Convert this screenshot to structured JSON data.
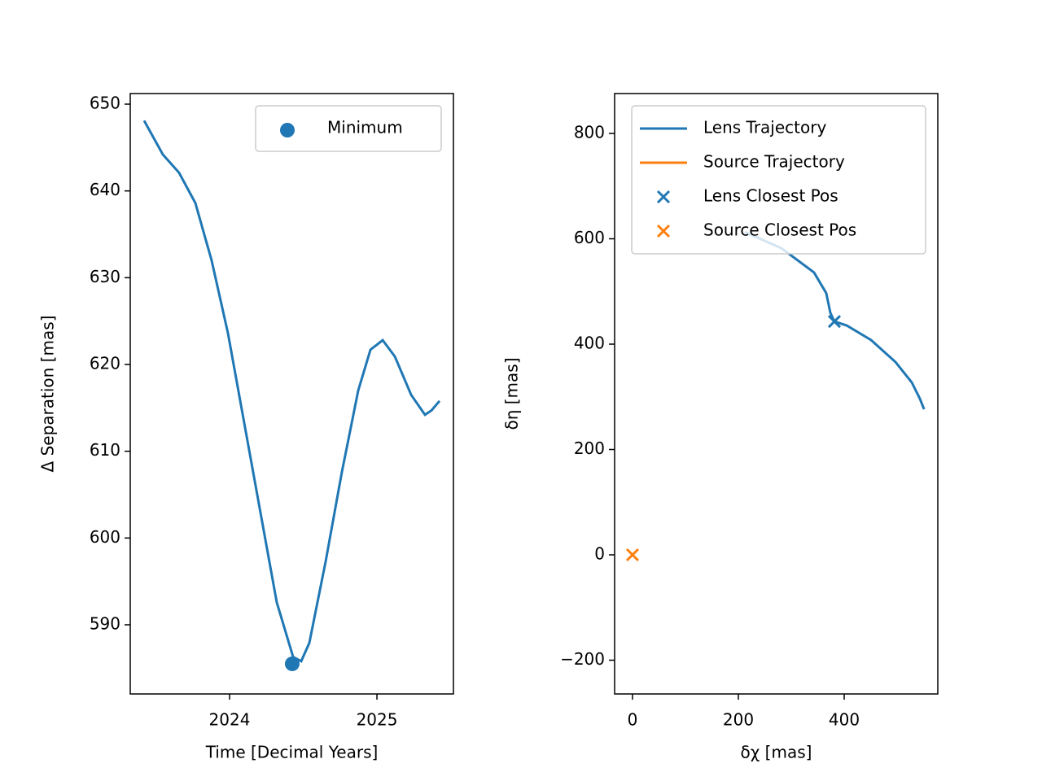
{
  "chart_data": [
    {
      "type": "line",
      "xlabel": "Time [Decimal Years]",
      "ylabel": "Δ Separation [mas]",
      "xlim": [
        2023.326,
        2025.519
      ],
      "ylim": [
        582.03,
        651.22
      ],
      "xticks": [
        2024,
        2025
      ],
      "yticks": [
        590,
        600,
        610,
        620,
        630,
        640,
        650
      ],
      "legend": "upper right",
      "series": [
        {
          "color": "#1f77b4",
          "kind": "line",
          "x": [
            2023.42,
            2023.547,
            2023.657,
            2023.768,
            2023.878,
            2023.989,
            2024.099,
            2024.21,
            2024.32,
            2024.431,
            2024.486,
            2024.541,
            2024.652,
            2024.762,
            2024.873,
            2024.956,
            2025.039,
            2025.122,
            2025.232,
            2025.326,
            2025.37,
            2025.425
          ],
          "values": [
            648.1,
            644.2,
            642.1,
            638.6,
            632.0,
            623.6,
            613.3,
            602.9,
            592.6,
            586.3,
            585.8,
            587.9,
            597.3,
            607.6,
            617.0,
            621.7,
            622.8,
            620.9,
            616.5,
            614.2,
            614.7,
            615.8
          ]
        },
        {
          "name": "Minimum",
          "color": "#1f77b4",
          "kind": "scatter",
          "marker": "o",
          "x": [
            2024.425
          ],
          "values": [
            585.5
          ]
        }
      ]
    },
    {
      "type": "line",
      "xlabel": "δχ [mas]",
      "ylabel": "δη [mas]",
      "xlim": [
        -33.8,
        576.9
      ],
      "ylim": [
        -264.1,
        875.7
      ],
      "xticks": [
        0,
        200,
        400
      ],
      "yticks": [
        {
          "value": -200,
          "label": "−200"
        },
        0,
        200,
        400,
        600,
        800
      ],
      "legend": "upper right",
      "series": [
        {
          "name": "Lens Trajectory",
          "color": "#1f77b4",
          "kind": "line",
          "x": [
            212,
            281.5,
            343,
            366,
            374,
            381.5,
            404.6,
            450.8,
            497,
            527.7,
            543,
            551
          ],
          "values": [
            613,
            582,
            536,
            497,
            459,
            443,
            435.5,
            407.7,
            366,
            327.4,
            296.5,
            276.4
          ]
        },
        {
          "name": "Source Trajectory",
          "color": "#ff7f0e",
          "kind": "line",
          "x": [
            0,
            0
          ],
          "values": [
            0,
            0
          ]
        },
        {
          "name": "Lens Closest Pos",
          "color": "#1f77b4",
          "kind": "scatter",
          "marker": "x",
          "x": [
            381.5
          ],
          "values": [
            443
          ]
        },
        {
          "name": "Source Closest Pos",
          "color": "#ff7f0e",
          "kind": "scatter",
          "marker": "x",
          "x": [
            0
          ],
          "values": [
            0
          ]
        }
      ]
    }
  ]
}
